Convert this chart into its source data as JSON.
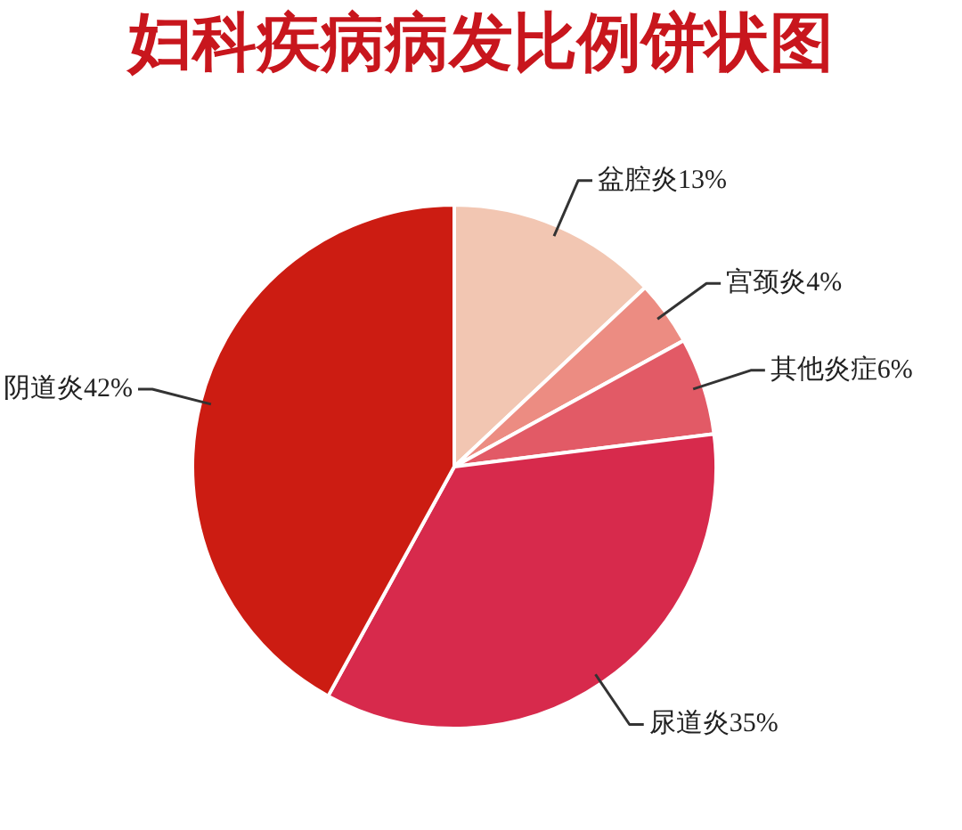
{
  "chart_data": {
    "type": "pie",
    "title": "妇科疾病病发比例饼状图",
    "categories": [
      "盆腔炎",
      "宫颈炎",
      "其他炎症",
      "尿道炎",
      "阴道炎"
    ],
    "values": [
      13,
      4,
      6,
      35,
      42
    ],
    "value_labels": [
      "13%",
      "4%",
      "6%",
      "35%",
      "42%"
    ],
    "colors": [
      "#f2c6b2",
      "#ec8c82",
      "#e25a66",
      "#d72a4c",
      "#cc1c12"
    ]
  }
}
